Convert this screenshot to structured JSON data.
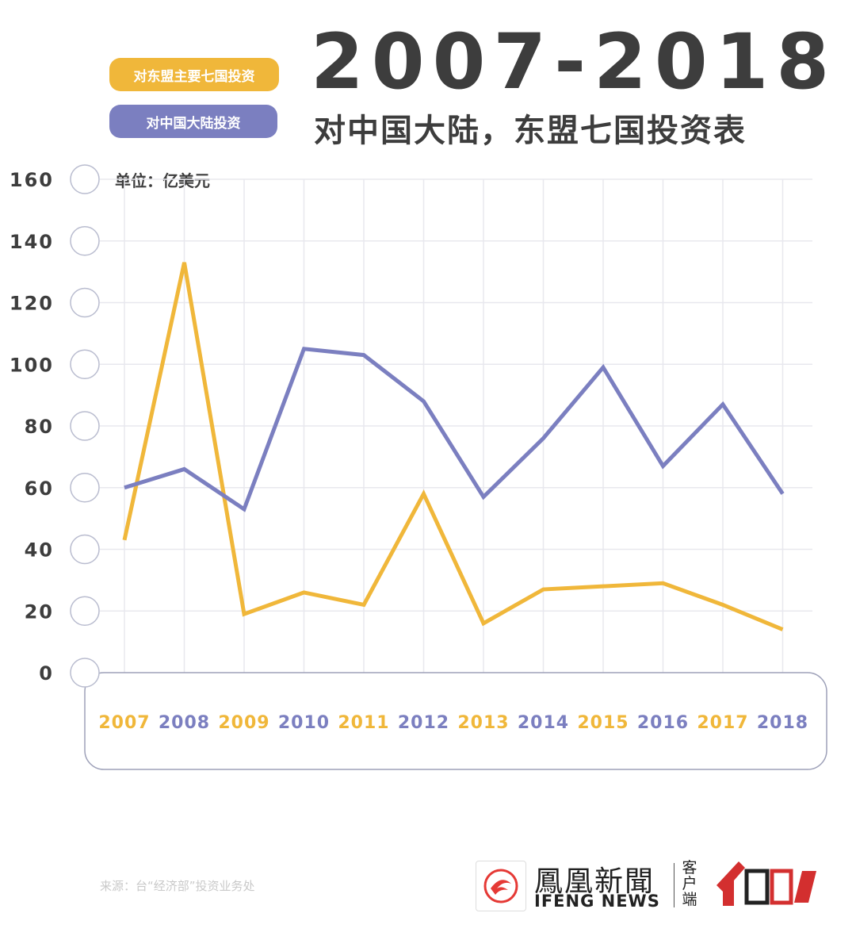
{
  "header": {
    "title": "2007-2018",
    "subtitle": "对中国大陆，东盟七国投资表"
  },
  "legend": [
    {
      "label": "对东盟主要七国投资",
      "color": "#f0b73a"
    },
    {
      "label": "对中国大陆投资",
      "color": "#7b7fc0"
    }
  ],
  "unit_label": "单位：亿美元",
  "source": "来源：台“经济部”投资业务处",
  "logo": {
    "name_cn": "鳳凰新聞",
    "name_en": "IFENG NEWS",
    "side_text": "客户端",
    "icon": "phoenix-logo-icon"
  },
  "colors": {
    "asean": "#f0b73a",
    "mainland": "#7b7fc0",
    "grid": "#e8e8ee",
    "axis_text": "#3d3d3d"
  },
  "chart_data": {
    "type": "line",
    "x": [
      "2007",
      "2008",
      "2009",
      "2010",
      "2011",
      "2012",
      "2013",
      "2014",
      "2015",
      "2016",
      "2017",
      "2018"
    ],
    "series": [
      {
        "name": "对东盟主要七国投资",
        "color": "#f0b73a",
        "values": [
          43,
          133,
          19,
          26,
          22,
          58,
          16,
          27,
          28,
          29,
          22,
          14
        ]
      },
      {
        "name": "对中国大陆投资",
        "color": "#7b7fc0",
        "values": [
          60,
          66,
          53,
          105,
          103,
          88,
          57,
          76,
          99,
          67,
          87,
          58
        ]
      }
    ],
    "yticks": [
      0,
      20,
      40,
      60,
      80,
      100,
      120,
      140,
      160
    ],
    "ylim": [
      0,
      160
    ],
    "grid": true,
    "title": "2007-2018",
    "subtitle": "对中国大陆，东盟七国投资表",
    "ylabel": "单位：亿美元",
    "xlabel": "",
    "legend_position": "top-left"
  }
}
